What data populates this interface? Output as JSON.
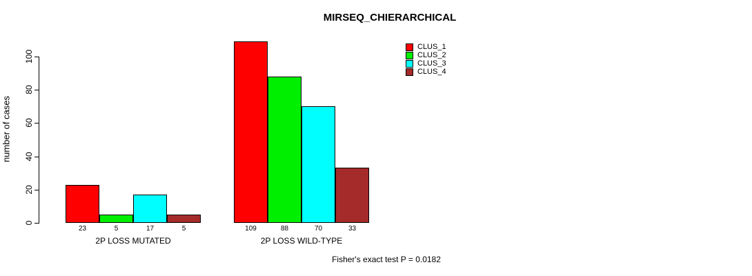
{
  "chart_data": {
    "type": "bar",
    "title": "MIRSEQ_CHIERARCHICAL",
    "ylabel": "number of cases",
    "xlabel": "",
    "ylim": [
      0,
      109
    ],
    "yticks": [
      0,
      20,
      40,
      60,
      80,
      100
    ],
    "categories": [
      "2P LOSS MUTATED",
      "2P LOSS WILD-TYPE"
    ],
    "series": [
      {
        "name": "CLUS_1",
        "color": "#ff0000",
        "values": [
          23,
          109
        ]
      },
      {
        "name": "CLUS_2",
        "color": "#00ee00",
        "values": [
          5,
          88
        ]
      },
      {
        "name": "CLUS_3",
        "color": "#00ffff",
        "values": [
          17,
          70
        ]
      },
      {
        "name": "CLUS_4",
        "color": "#a52a2a",
        "values": [
          5,
          33
        ]
      }
    ],
    "bar_value_labels": [
      [
        "23",
        "5",
        "17",
        "5"
      ],
      [
        "109",
        "88",
        "70",
        "33"
      ]
    ],
    "legend_position": "top-right",
    "annotation": "Fisher's exact test P = 0.0182",
    "grid": false,
    "background_color": "#ffffff",
    "axis_color": "#000000"
  }
}
